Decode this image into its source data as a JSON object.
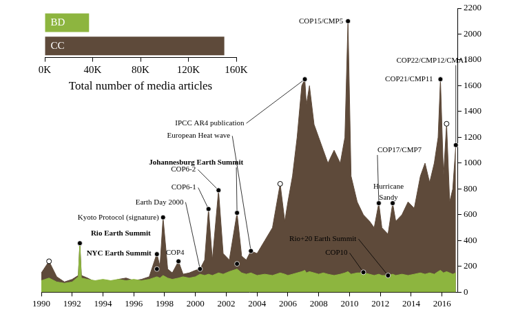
{
  "chart_data": [
    {
      "type": "area",
      "x": [
        1990.0,
        1990.5,
        1991.0,
        1991.5,
        1992.0,
        1992.4,
        1992.5,
        1992.6,
        1993.0,
        1993.5,
        1994.0,
        1994.5,
        1995.0,
        1995.5,
        1996.0,
        1996.5,
        1997.0,
        1997.5,
        1997.7,
        1997.9,
        1998.2,
        1998.5,
        1998.9,
        1999.2,
        1999.6,
        2000.0,
        2000.3,
        2000.6,
        2000.85,
        2001.1,
        2001.5,
        2001.8,
        2002.2,
        2002.7,
        2003.0,
        2003.3,
        2003.6,
        2004.0,
        2004.5,
        2005.0,
        2005.5,
        2005.8,
        2006.0,
        2006.3,
        2006.6,
        2006.9,
        2007.1,
        2007.2,
        2007.4,
        2007.7,
        2008.0,
        2008.3,
        2008.6,
        2009.0,
        2009.4,
        2009.7,
        2009.9,
        2010.1,
        2010.5,
        2010.9,
        2011.3,
        2011.6,
        2011.9,
        2012.1,
        2012.5,
        2012.8,
        2013.0,
        2013.4,
        2013.8,
        2014.2,
        2014.6,
        2014.9,
        2015.2,
        2015.5,
        2015.75,
        2015.9,
        2016.1,
        2016.3,
        2016.5,
        2016.7,
        2016.9
      ],
      "series": [
        {
          "name": "CC",
          "color": "#5e4a3a",
          "values": [
            150,
            240,
            120,
            80,
            100,
            130,
            380,
            130,
            110,
            80,
            90,
            80,
            100,
            110,
            90,
            100,
            120,
            300,
            200,
            580,
            180,
            150,
            240,
            140,
            150,
            170,
            180,
            250,
            645,
            250,
            790,
            300,
            250,
            615,
            280,
            250,
            320,
            300,
            400,
            500,
            840,
            550,
            700,
            900,
            1200,
            1600,
            1650,
            1450,
            1600,
            1300,
            1200,
            1100,
            1000,
            1100,
            1000,
            1200,
            2100,
            900,
            700,
            600,
            550,
            500,
            690,
            500,
            450,
            690,
            550,
            600,
            700,
            650,
            900,
            1000,
            850,
            1000,
            1200,
            1650,
            900,
            1305,
            700,
            800,
            1140
          ]
        },
        {
          "name": "BD",
          "color": "#8db53f",
          "values": [
            90,
            110,
            80,
            70,
            80,
            120,
            370,
            110,
            100,
            90,
            100,
            90,
            100,
            90,
            100,
            90,
            100,
            120,
            110,
            130,
            110,
            100,
            110,
            120,
            110,
            120,
            140,
            130,
            140,
            130,
            150,
            140,
            160,
            180,
            150,
            140,
            150,
            130,
            140,
            130,
            150,
            140,
            130,
            140,
            150,
            160,
            170,
            150,
            160,
            150,
            140,
            150,
            140,
            130,
            140,
            150,
            160,
            140,
            150,
            150,
            140,
            130,
            140,
            130,
            130,
            140,
            130,
            140,
            130,
            140,
            150,
            140,
            150,
            140,
            160,
            170,
            150,
            160,
            150,
            140,
            150
          ]
        }
      ],
      "xlim": [
        1990,
        2017
      ],
      "xticks": [
        1990,
        1992,
        1994,
        1996,
        1998,
        2000,
        2002,
        2004,
        2006,
        2008,
        2010,
        2012,
        2014,
        2016
      ],
      "ylim": [
        0,
        2200
      ],
      "yticks": [
        0,
        200,
        400,
        600,
        800,
        1000,
        1200,
        1400,
        1600,
        1800,
        2000,
        2200
      ],
      "grid": false,
      "annotations": [
        {
          "text": "Rio Earth Summit",
          "x": 1992.5,
          "y": 380
        },
        {
          "text": "NYC Earth Summit",
          "x": 1997.5,
          "y": 295
        },
        {
          "text": "Kyoto Protocol (signature)",
          "x": 1997.9,
          "y": 580
        },
        {
          "text": "COP4",
          "x": 1998.9,
          "y": 240
        },
        {
          "text": "Earth Day 2000",
          "x": 2000.3,
          "y": 180
        },
        {
          "text": "COP6-1",
          "x": 2000.85,
          "y": 645
        },
        {
          "text": "COP6-2",
          "x": 2001.5,
          "y": 790
        },
        {
          "text": "Johannesburg Earth Summit",
          "x": 2002.7,
          "y": 615
        },
        {
          "text": "European Heat wave",
          "x": 2003.6,
          "y": 320
        },
        {
          "text": "IPCC AR4 publication",
          "x": 2007.1,
          "y": 1650
        },
        {
          "text": "COP15/CMP5",
          "x": 2009.9,
          "y": 2100
        },
        {
          "text": "COP10",
          "x": 2010.9,
          "y": 155
        },
        {
          "text": "Rio+20 Earth Summit",
          "x": 2012.5,
          "y": 130
        },
        {
          "text": "COP17/CMP7",
          "x": 2011.9,
          "y": 690
        },
        {
          "text": "Hurricane Sandy",
          "x": 2012.8,
          "y": 690
        },
        {
          "text": "COP21/CMP11",
          "x": 2015.9,
          "y": 1650
        },
        {
          "text": "COP22/CMP12/CMA1",
          "x": 2016.9,
          "y": 1140
        }
      ],
      "markers": [
        {
          "x": 1990.5,
          "y": 240,
          "marker": "open"
        },
        {
          "x": 2005.5,
          "y": 840,
          "marker": "open"
        },
        {
          "x": 2016.3,
          "y": 1305,
          "marker": "open"
        },
        {
          "x": 1997.5,
          "y": 180,
          "marker": "filled"
        },
        {
          "x": 2002.7,
          "y": 220,
          "marker": "filled"
        }
      ]
    },
    {
      "type": "bar",
      "orientation": "horizontal",
      "categories": [
        "BD",
        "CC"
      ],
      "values": [
        37000,
        150000
      ],
      "colors": [
        "#8db53f",
        "#5e4a3a"
      ],
      "xlabel": "Total number of media articles",
      "xlim": [
        0,
        160000
      ],
      "xticks": [
        {
          "value": 0,
          "label": "0K"
        },
        {
          "value": 40000,
          "label": "40K"
        },
        {
          "value": 80000,
          "label": "80K"
        },
        {
          "value": 120000,
          "label": "120K"
        },
        {
          "value": 160000,
          "label": "160K"
        }
      ],
      "grid": false
    }
  ]
}
